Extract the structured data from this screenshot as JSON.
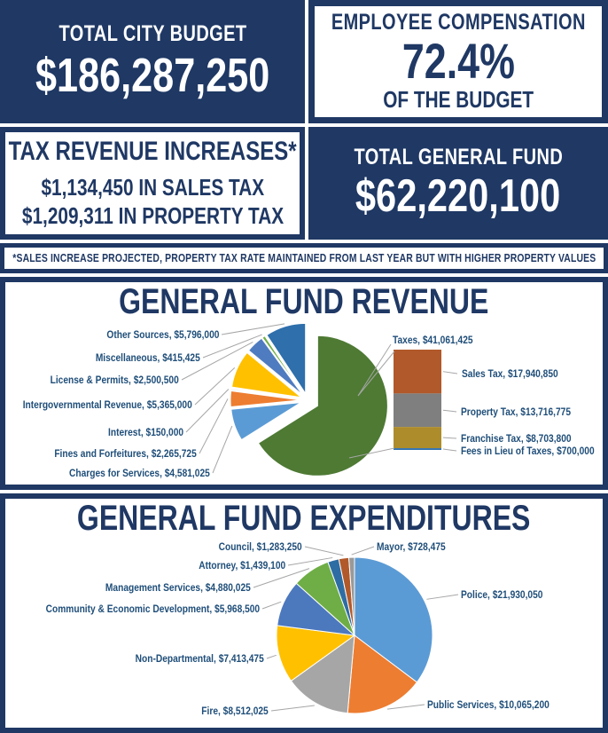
{
  "colors": {
    "navy": "#1F3864",
    "label_text": "#1F4E79",
    "leader_line": "#A6A6A6"
  },
  "stats": {
    "total_city_budget": {
      "title": "TOTAL CITY BUDGET",
      "value": "$186,287,250"
    },
    "employee_compensation": {
      "title": "EMPLOYEE COMPENSATION",
      "value": "72.4%",
      "subtitle": "OF THE BUDGET"
    },
    "tax_revenue_increases": {
      "title": "TAX REVENUE INCREASES*",
      "line1": "$1,134,450 IN SALES TAX",
      "line2": "$1,209,311 IN PROPERTY TAX"
    },
    "total_general_fund": {
      "title": "TOTAL GENERAL FUND",
      "value": "$62,220,100"
    },
    "footnote": "*SALES INCREASE PROJECTED, PROPERTY TAX RATE MAINTAINED FROM LAST YEAR BUT WITH HIGHER PROPERTY VALUES"
  },
  "chart_data": [
    {
      "type": "pie",
      "title": "GENERAL FUND REVENUE",
      "exploded": true,
      "start_angle_deg": 0,
      "direction": "clockwise",
      "legend_position": "callout-labels",
      "series": [
        {
          "name": "Taxes",
          "value": 41061425,
          "display": "Taxes, $41,061,425",
          "color": "#4E7A34"
        },
        {
          "name": "Charges for Services",
          "value": 4581025,
          "display": "Charges for Services, $4,581,025",
          "color": "#5B9BD5"
        },
        {
          "name": "Fines and Forfeitures",
          "value": 2265725,
          "display": "Fines and Forfeitures, $2,265,725",
          "color": "#ED7D31"
        },
        {
          "name": "Interest",
          "value": 150000,
          "display": "Interest, $150,000",
          "color": "#BFBFBF"
        },
        {
          "name": "Intergovernmental Revenue",
          "value": 5365000,
          "display": "Intergovernmental Revenue, $5,365,000",
          "color": "#FFC000"
        },
        {
          "name": "License & Permits",
          "value": 2500500,
          "display": "License & Permits, $2,500,500",
          "color": "#4F7CC0"
        },
        {
          "name": "Miscellaneous",
          "value": 415425,
          "display": "Miscellaneous, $415,425",
          "color": "#6FAE46"
        },
        {
          "name": "Other Sources",
          "value": 5796000,
          "display": "Other Sources, $5,796,000",
          "color": "#2E6FAC"
        }
      ],
      "bar_breakdown": {
        "of": "Taxes",
        "segments": [
          {
            "name": "Sales Tax",
            "value": 17940850,
            "display": "Sales Tax, $17,940,850",
            "color": "#B1592A"
          },
          {
            "name": "Property Tax",
            "value": 13716775,
            "display": "Property Tax, $13,716,775",
            "color": "#7F7F7F"
          },
          {
            "name": "Franchise Tax",
            "value": 8703800,
            "display": "Franchise Tax, $8,703,800",
            "color": "#AD8C2B"
          },
          {
            "name": "Fees in Lieu of Taxes",
            "value": 700000,
            "display": "Fees in Lieu of Taxes, $700,000",
            "color": "#2E6FAC"
          }
        ]
      }
    },
    {
      "type": "pie",
      "title": "GENERAL FUND EXPENDITURES",
      "exploded": false,
      "start_angle_deg": 0,
      "direction": "clockwise",
      "legend_position": "callout-labels",
      "series": [
        {
          "name": "Police",
          "value": 21930050,
          "display": "Police, $21,930,050",
          "color": "#5B9BD5"
        },
        {
          "name": "Public Services",
          "value": 10065200,
          "display": "Public Services, $10,065,200",
          "color": "#ED7D31"
        },
        {
          "name": "Fire",
          "value": 8512025,
          "display": "Fire, $8,512,025",
          "color": "#A6A6A6"
        },
        {
          "name": "Non-Departmental",
          "value": 7413475,
          "display": "Non-Departmental, $7,413,475",
          "color": "#FFC000"
        },
        {
          "name": "Community & Economic Development",
          "value": 5968500,
          "display": "Community & Economic Development, $5,968,500",
          "color": "#4C78BE"
        },
        {
          "name": "Management Services",
          "value": 4880025,
          "display": "Management Services, $4,880,025",
          "color": "#6FAE46"
        },
        {
          "name": "Attorney",
          "value": 1439100,
          "display": "Attorney, $1,439,100",
          "color": "#2E6DA4"
        },
        {
          "name": "Council",
          "value": 1283250,
          "display": "Council, $1,283,250",
          "color": "#B1592A"
        },
        {
          "name": "Mayor",
          "value": 728475,
          "display": "Mayor, $728,475",
          "color": "#999999"
        }
      ]
    }
  ]
}
